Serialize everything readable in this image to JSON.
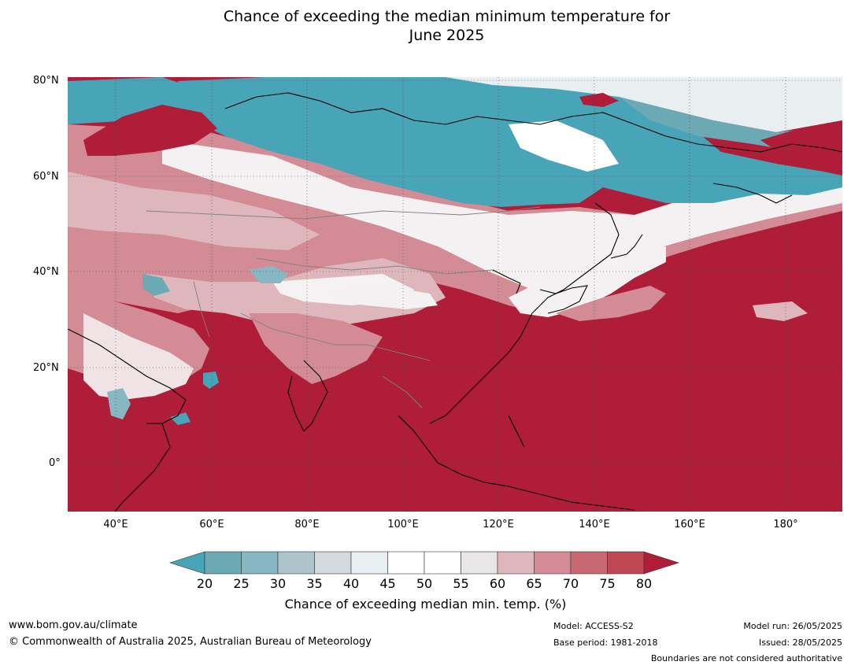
{
  "title": {
    "line1": "Chance of exceeding the median minimum temperature for",
    "line2": "June 2025"
  },
  "axes": {
    "lat_labels": [
      "80°N",
      "60°N",
      "40°N",
      "20°N",
      "0°"
    ],
    "lon_labels": [
      "40°E",
      "60°E",
      "80°E",
      "100°E",
      "120°E",
      "140°E",
      "160°E",
      "180°"
    ],
    "lat_range": [
      -10,
      80
    ],
    "lon_range": [
      30,
      192
    ],
    "gridlines": true
  },
  "colorbar": {
    "ticks": [
      "20",
      "25",
      "30",
      "35",
      "40",
      "45",
      "50",
      "55",
      "60",
      "65",
      "70",
      "75",
      "80"
    ],
    "colors": [
      "#48a5b7",
      "#6ba9b5",
      "#87b7c3",
      "#acc4ca",
      "#d3d9dc",
      "#e9eef1",
      "#ffffff",
      "#ffffff",
      "#e8e6e7",
      "#deb7bd",
      "#d38b96",
      "#c86872",
      "#bf4653",
      "#b01d39"
    ],
    "label": "Chance of exceeding median min. temp. (%)"
  },
  "footer": {
    "url": "www.bom.gov.au/climate",
    "copyright": "© Commonwealth of Australia 2025, Australian Bureau of Meteorology",
    "model": "Model: ACCESS-S2",
    "base_period": "Base period: 1981-2018",
    "model_run": "Model run: 26/05/2025",
    "issued": "Issued: 28/05/2025",
    "disclaimer": "Boundaries are not considered authoritative"
  }
}
